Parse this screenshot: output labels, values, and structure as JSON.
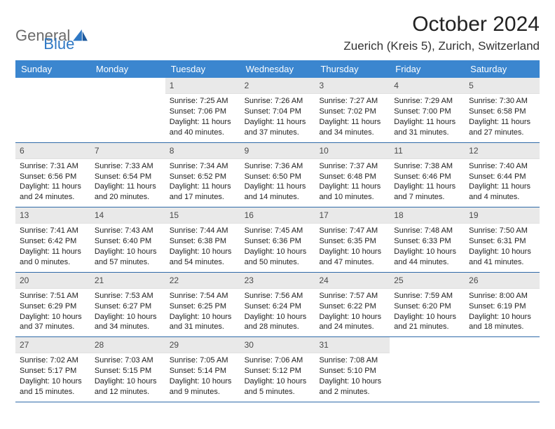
{
  "logo": {
    "text1": "General",
    "text2": "Blue"
  },
  "title": "October 2024",
  "location": "Zuerich (Kreis 5), Zurich, Switzerland",
  "colors": {
    "header_bg": "#3b86cf",
    "header_text": "#ffffff",
    "daynum_bg": "#e9e9e9",
    "daynum_text": "#4a4a4a",
    "row_border": "#2f6aa8",
    "logo_gray": "#6b6b6b",
    "logo_blue": "#2f78c4",
    "body_text": "#222222",
    "background": "#ffffff"
  },
  "typography": {
    "title_fontsize": 30,
    "location_fontsize": 17,
    "header_fontsize": 13,
    "daynum_fontsize": 12,
    "body_fontsize": 11
  },
  "day_headers": [
    "Sunday",
    "Monday",
    "Tuesday",
    "Wednesday",
    "Thursday",
    "Friday",
    "Saturday"
  ],
  "weeks": [
    [
      {
        "empty": true
      },
      {
        "empty": true
      },
      {
        "num": "1",
        "sunrise": "Sunrise: 7:25 AM",
        "sunset": "Sunset: 7:06 PM",
        "daylight": "Daylight: 11 hours and 40 minutes."
      },
      {
        "num": "2",
        "sunrise": "Sunrise: 7:26 AM",
        "sunset": "Sunset: 7:04 PM",
        "daylight": "Daylight: 11 hours and 37 minutes."
      },
      {
        "num": "3",
        "sunrise": "Sunrise: 7:27 AM",
        "sunset": "Sunset: 7:02 PM",
        "daylight": "Daylight: 11 hours and 34 minutes."
      },
      {
        "num": "4",
        "sunrise": "Sunrise: 7:29 AM",
        "sunset": "Sunset: 7:00 PM",
        "daylight": "Daylight: 11 hours and 31 minutes."
      },
      {
        "num": "5",
        "sunrise": "Sunrise: 7:30 AM",
        "sunset": "Sunset: 6:58 PM",
        "daylight": "Daylight: 11 hours and 27 minutes."
      }
    ],
    [
      {
        "num": "6",
        "sunrise": "Sunrise: 7:31 AM",
        "sunset": "Sunset: 6:56 PM",
        "daylight": "Daylight: 11 hours and 24 minutes."
      },
      {
        "num": "7",
        "sunrise": "Sunrise: 7:33 AM",
        "sunset": "Sunset: 6:54 PM",
        "daylight": "Daylight: 11 hours and 20 minutes."
      },
      {
        "num": "8",
        "sunrise": "Sunrise: 7:34 AM",
        "sunset": "Sunset: 6:52 PM",
        "daylight": "Daylight: 11 hours and 17 minutes."
      },
      {
        "num": "9",
        "sunrise": "Sunrise: 7:36 AM",
        "sunset": "Sunset: 6:50 PM",
        "daylight": "Daylight: 11 hours and 14 minutes."
      },
      {
        "num": "10",
        "sunrise": "Sunrise: 7:37 AM",
        "sunset": "Sunset: 6:48 PM",
        "daylight": "Daylight: 11 hours and 10 minutes."
      },
      {
        "num": "11",
        "sunrise": "Sunrise: 7:38 AM",
        "sunset": "Sunset: 6:46 PM",
        "daylight": "Daylight: 11 hours and 7 minutes."
      },
      {
        "num": "12",
        "sunrise": "Sunrise: 7:40 AM",
        "sunset": "Sunset: 6:44 PM",
        "daylight": "Daylight: 11 hours and 4 minutes."
      }
    ],
    [
      {
        "num": "13",
        "sunrise": "Sunrise: 7:41 AM",
        "sunset": "Sunset: 6:42 PM",
        "daylight": "Daylight: 11 hours and 0 minutes."
      },
      {
        "num": "14",
        "sunrise": "Sunrise: 7:43 AM",
        "sunset": "Sunset: 6:40 PM",
        "daylight": "Daylight: 10 hours and 57 minutes."
      },
      {
        "num": "15",
        "sunrise": "Sunrise: 7:44 AM",
        "sunset": "Sunset: 6:38 PM",
        "daylight": "Daylight: 10 hours and 54 minutes."
      },
      {
        "num": "16",
        "sunrise": "Sunrise: 7:45 AM",
        "sunset": "Sunset: 6:36 PM",
        "daylight": "Daylight: 10 hours and 50 minutes."
      },
      {
        "num": "17",
        "sunrise": "Sunrise: 7:47 AM",
        "sunset": "Sunset: 6:35 PM",
        "daylight": "Daylight: 10 hours and 47 minutes."
      },
      {
        "num": "18",
        "sunrise": "Sunrise: 7:48 AM",
        "sunset": "Sunset: 6:33 PM",
        "daylight": "Daylight: 10 hours and 44 minutes."
      },
      {
        "num": "19",
        "sunrise": "Sunrise: 7:50 AM",
        "sunset": "Sunset: 6:31 PM",
        "daylight": "Daylight: 10 hours and 41 minutes."
      }
    ],
    [
      {
        "num": "20",
        "sunrise": "Sunrise: 7:51 AM",
        "sunset": "Sunset: 6:29 PM",
        "daylight": "Daylight: 10 hours and 37 minutes."
      },
      {
        "num": "21",
        "sunrise": "Sunrise: 7:53 AM",
        "sunset": "Sunset: 6:27 PM",
        "daylight": "Daylight: 10 hours and 34 minutes."
      },
      {
        "num": "22",
        "sunrise": "Sunrise: 7:54 AM",
        "sunset": "Sunset: 6:25 PM",
        "daylight": "Daylight: 10 hours and 31 minutes."
      },
      {
        "num": "23",
        "sunrise": "Sunrise: 7:56 AM",
        "sunset": "Sunset: 6:24 PM",
        "daylight": "Daylight: 10 hours and 28 minutes."
      },
      {
        "num": "24",
        "sunrise": "Sunrise: 7:57 AM",
        "sunset": "Sunset: 6:22 PM",
        "daylight": "Daylight: 10 hours and 24 minutes."
      },
      {
        "num": "25",
        "sunrise": "Sunrise: 7:59 AM",
        "sunset": "Sunset: 6:20 PM",
        "daylight": "Daylight: 10 hours and 21 minutes."
      },
      {
        "num": "26",
        "sunrise": "Sunrise: 8:00 AM",
        "sunset": "Sunset: 6:19 PM",
        "daylight": "Daylight: 10 hours and 18 minutes."
      }
    ],
    [
      {
        "num": "27",
        "sunrise": "Sunrise: 7:02 AM",
        "sunset": "Sunset: 5:17 PM",
        "daylight": "Daylight: 10 hours and 15 minutes."
      },
      {
        "num": "28",
        "sunrise": "Sunrise: 7:03 AM",
        "sunset": "Sunset: 5:15 PM",
        "daylight": "Daylight: 10 hours and 12 minutes."
      },
      {
        "num": "29",
        "sunrise": "Sunrise: 7:05 AM",
        "sunset": "Sunset: 5:14 PM",
        "daylight": "Daylight: 10 hours and 9 minutes."
      },
      {
        "num": "30",
        "sunrise": "Sunrise: 7:06 AM",
        "sunset": "Sunset: 5:12 PM",
        "daylight": "Daylight: 10 hours and 5 minutes."
      },
      {
        "num": "31",
        "sunrise": "Sunrise: 7:08 AM",
        "sunset": "Sunset: 5:10 PM",
        "daylight": "Daylight: 10 hours and 2 minutes."
      },
      {
        "empty": true
      },
      {
        "empty": true
      }
    ]
  ]
}
